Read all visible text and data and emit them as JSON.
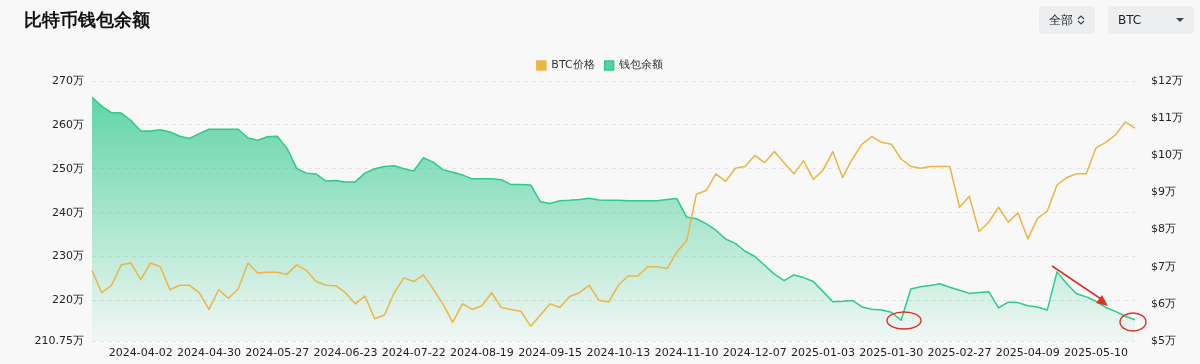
{
  "chart_data": {
    "type": "line",
    "title": "比特币钱包余额",
    "annotations": [
      "全部",
      "BTC"
    ],
    "categories": [
      null,
      null,
      null,
      null,
      null,
      "2024-04-02",
      null,
      null,
      null,
      null,
      null,
      null,
      "2024-04-30",
      null,
      null,
      null,
      null,
      null,
      null,
      "2024-05-27",
      null,
      null,
      null,
      null,
      null,
      null,
      "2024-06-23",
      null,
      null,
      null,
      null,
      null,
      null,
      "2024-07-22",
      null,
      null,
      null,
      null,
      null,
      null,
      "2024-08-19",
      null,
      null,
      null,
      null,
      null,
      null,
      "2024-09-15",
      null,
      null,
      null,
      null,
      null,
      null,
      "2024-10-13",
      null,
      null,
      null,
      null,
      null,
      null,
      "2024-11-10",
      null,
      null,
      null,
      null,
      null,
      null,
      "2024-12-07",
      null,
      null,
      null,
      null,
      null,
      null,
      "2025-01-03",
      null,
      null,
      null,
      null,
      null,
      null,
      "2025-01-30",
      null,
      null,
      null,
      null,
      null,
      null,
      "2025-02-27",
      null,
      null,
      null,
      null,
      null,
      null,
      "2025-04-09",
      null,
      null,
      null,
      null,
      null,
      null,
      "2025-05-10",
      null,
      null,
      null,
      null
    ],
    "series": [
      {
        "name": "BTC价格",
        "axis": "y2",
        "color": "#ecb544",
        "values": [
          6.9,
          6.3,
          6.5,
          7.05,
          7.1,
          6.65,
          7.1,
          7.0,
          6.38,
          6.5,
          6.5,
          6.3,
          5.85,
          6.38,
          6.15,
          6.4,
          7.1,
          6.83,
          6.85,
          6.85,
          6.8,
          7.05,
          6.9,
          6.6,
          6.5,
          6.49,
          6.3,
          6.0,
          6.21,
          5.6,
          5.7,
          6.3,
          6.7,
          6.6,
          6.78,
          6.4,
          6.0,
          5.5,
          6.0,
          5.85,
          5.95,
          6.3,
          5.9,
          5.85,
          5.8,
          5.4,
          5.7,
          6.0,
          5.9,
          6.2,
          6.3,
          6.5,
          6.1,
          6.05,
          6.5,
          6.75,
          6.75,
          7.0,
          7.0,
          6.95,
          7.4,
          7.7,
          8.95,
          9.05,
          9.5,
          9.3,
          9.65,
          9.7,
          10.0,
          9.8,
          10.1,
          9.8,
          9.5,
          9.85,
          9.35,
          9.6,
          10.1,
          9.4,
          9.9,
          10.3,
          10.5,
          10.35,
          10.3,
          9.9,
          9.7,
          9.65,
          9.7,
          9.7,
          9.7,
          8.6,
          8.9,
          7.95,
          8.2,
          8.6,
          8.2,
          8.45,
          7.75,
          8.3,
          8.5,
          9.2,
          9.4,
          9.5,
          9.5,
          10.2,
          10.35,
          10.55,
          10.9,
          10.73
        ]
      },
      {
        "name": "钱包余额",
        "type": "area",
        "color": "#2fc98c",
        "values": [
          266.3,
          264.3,
          262.8,
          262.7,
          261,
          258.6,
          258.6,
          258.9,
          258.4,
          257.4,
          256.9,
          258,
          259,
          259,
          259,
          259,
          257,
          256.5,
          257.3,
          257.4,
          254.7,
          250.1,
          249,
          248.8,
          247.2,
          247.3,
          247,
          247,
          249,
          250,
          250.5,
          250.7,
          250,
          249.5,
          252.5,
          251.5,
          249.8,
          249.2,
          248.6,
          247.7,
          247.7,
          247.7,
          247.5,
          246.4,
          246.4,
          246.3,
          242.5,
          242.1,
          242.7,
          242.8,
          243,
          243.3,
          242.9,
          242.8,
          242.8,
          242.7,
          242.7,
          242.7,
          242.7,
          243,
          243.2,
          239,
          238.6,
          237.5,
          236,
          234,
          233,
          231.2,
          230,
          228,
          226,
          224.5,
          225.8,
          225.2,
          224.3,
          222,
          219.7,
          219.8,
          220,
          218.5,
          218,
          217.8,
          217.3,
          215.5,
          222.6,
          223.1,
          223.4,
          223.8,
          223,
          222.3,
          221.6,
          221.8,
          222,
          218.3,
          219.6,
          219.5,
          218.8,
          218.5,
          217.8,
          226.5,
          223.8,
          221.5,
          220.8,
          219.8,
          218.4,
          217.5,
          216.4,
          215.6
        ]
      }
    ],
    "ylim": [
      210.75,
      270
    ],
    "yticks": [
      {
        "value": 210.75,
        "label": "210.75万"
      },
      {
        "value": 220,
        "label": "220万"
      },
      {
        "value": 230,
        "label": "230万"
      },
      {
        "value": 240,
        "label": "240万"
      },
      {
        "value": 250,
        "label": "250万"
      },
      {
        "value": 260,
        "label": "260万"
      },
      {
        "value": 270,
        "label": "270万"
      }
    ],
    "y2lim": [
      5,
      12
    ],
    "y2ticks": [
      {
        "value": 5,
        "label": "$5万"
      },
      {
        "value": 6,
        "label": "$6万"
      },
      {
        "value": 7,
        "label": "$7万"
      },
      {
        "value": 8,
        "label": "$8万"
      },
      {
        "value": 9,
        "label": "$9万"
      },
      {
        "value": 10,
        "label": "$10万"
      },
      {
        "value": 11,
        "label": "$11万"
      },
      {
        "value": 12,
        "label": "$12万"
      }
    ],
    "grid": "y",
    "legend": "top",
    "marker": "none"
  }
}
